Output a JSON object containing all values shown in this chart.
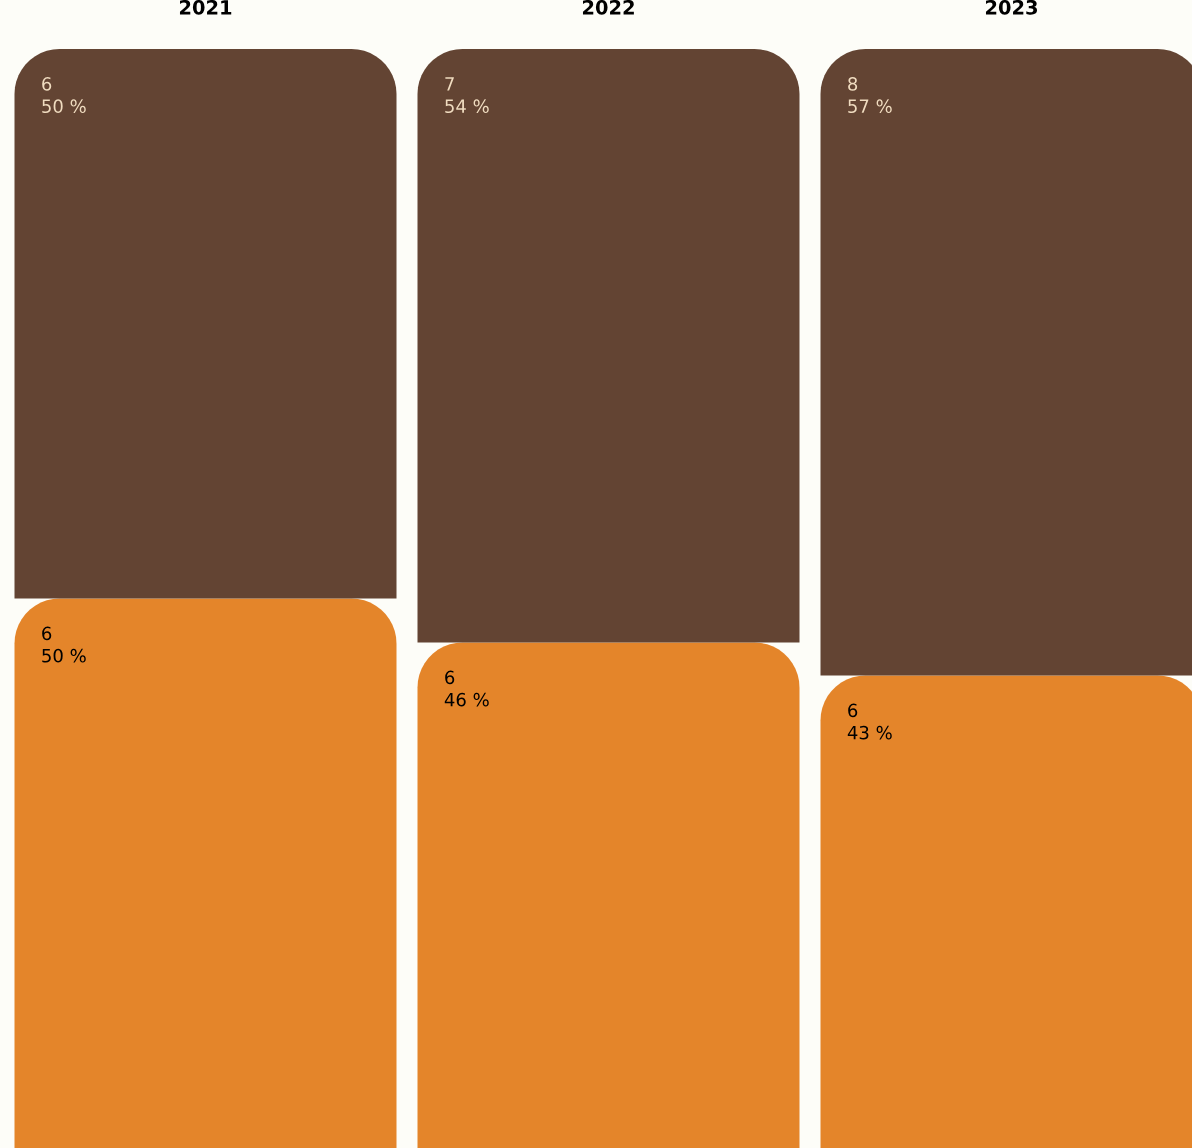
{
  "chart_data": {
    "type": "bar",
    "stacked": true,
    "categories": [
      "2021",
      "2022",
      "2023"
    ],
    "series": [
      {
        "color": "#e4852a",
        "values": [
          50,
          46,
          43
        ],
        "value_labels": [
          "6\n50 %",
          "6\n46 %",
          "6\n43 %"
        ]
      },
      {
        "color": "#634433",
        "values": [
          50,
          54,
          57
        ],
        "value_labels": [
          "6\n50 %",
          "7\n54 %",
          "8\n57 %"
        ]
      }
    ],
    "grid": false
  }
}
